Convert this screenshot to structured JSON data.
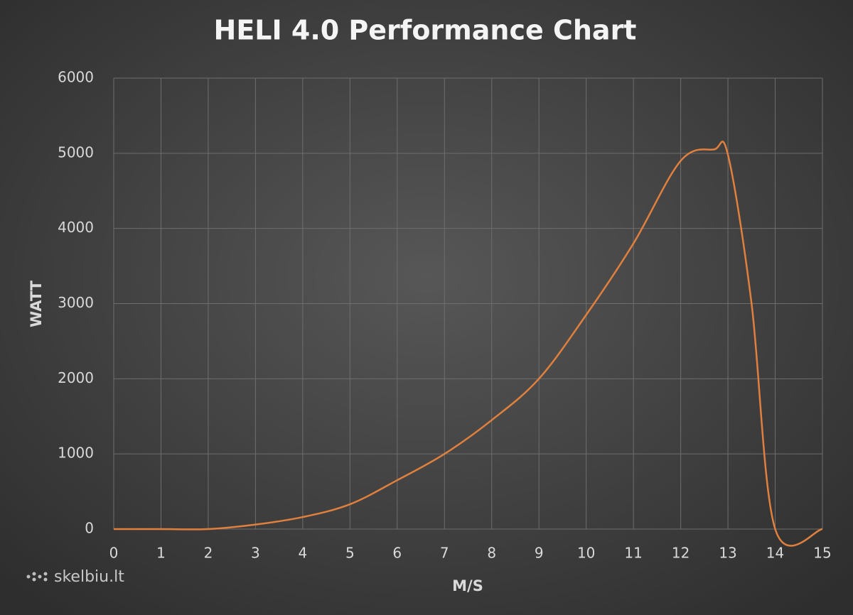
{
  "chart_data": {
    "type": "line",
    "title": "HELI 4.0 Performance Chart",
    "x_label": "M/S",
    "y_label": "WATT",
    "watermark": "skelbiu.lt",
    "series": [
      {
        "name": "HELI 4.0",
        "color": "#e0803e",
        "x": [
          0,
          1,
          2,
          3,
          4,
          5,
          6,
          7,
          8,
          9,
          10,
          11,
          12,
          12.7,
          13,
          13.5,
          14,
          15
        ],
        "values": [
          0,
          0,
          0,
          60,
          160,
          330,
          650,
          1000,
          1450,
          2000,
          2850,
          3800,
          4900,
          5050,
          4980,
          3000,
          0,
          0
        ]
      }
    ],
    "xlim": [
      0,
      15
    ],
    "xticks": [
      0,
      1,
      2,
      3,
      4,
      5,
      6,
      7,
      8,
      9,
      10,
      11,
      12,
      13,
      14,
      15
    ],
    "ylim": [
      0,
      6000
    ],
    "yticks": [
      0,
      1000,
      2000,
      3000,
      4000,
      5000,
      6000
    ],
    "grid": true
  }
}
